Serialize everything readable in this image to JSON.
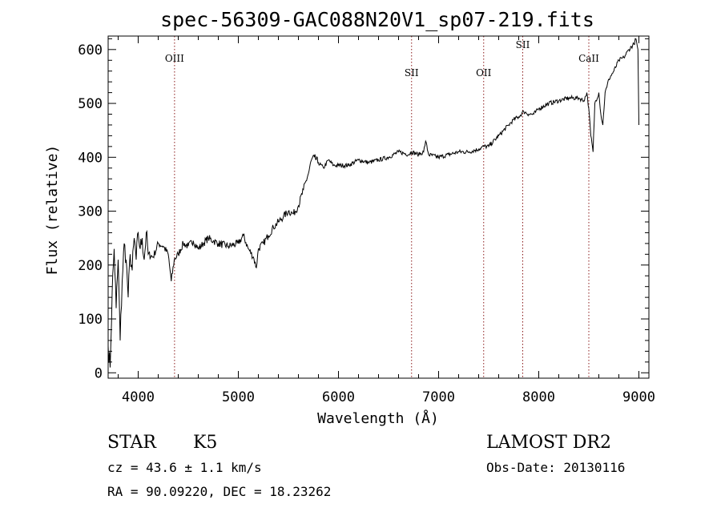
{
  "chart_data": {
    "type": "line",
    "title": "spec-56309-GAC088N20V1_sp07-219.fits",
    "xlabel": "Wavelength (Å)",
    "ylabel": "Flux (relative)",
    "xlim": [
      3700,
      9100
    ],
    "ylim": [
      -10,
      625
    ],
    "x_ticks": [
      4000,
      5000,
      6000,
      7000,
      8000,
      9000
    ],
    "y_ticks": [
      0,
      100,
      200,
      300,
      400,
      500,
      600
    ],
    "grid": false,
    "line_color": "#000000",
    "marker_color": "#8b1a1a",
    "lines": [
      {
        "name": "OIII",
        "x": 4363
      },
      {
        "name": "SII",
        "x": 6730
      },
      {
        "name": "OII",
        "x": 7450
      },
      {
        "name": "SII",
        "x": 7840
      },
      {
        "name": "CaII",
        "x": 8500
      }
    ],
    "series": [
      {
        "x": [
          3700,
          3720,
          3740,
          3760,
          3780,
          3800,
          3820,
          3840,
          3860,
          3880,
          3900,
          3920,
          3940,
          3960,
          3980,
          4000,
          4020,
          4040,
          4060,
          4080,
          4100,
          4150,
          4200,
          4250,
          4300,
          4330,
          4360,
          4400,
          4450,
          4500,
          4550,
          4600,
          4650,
          4700,
          4750,
          4800,
          4900,
          5000,
          5050,
          5100,
          5150,
          5180,
          5200,
          5250,
          5300,
          5350,
          5400,
          5450,
          5500,
          5550,
          5600,
          5650,
          5700,
          5730,
          5760,
          5800,
          5850,
          5900,
          5950,
          6000,
          6100,
          6200,
          6300,
          6400,
          6500,
          6600,
          6700,
          6730,
          6800,
          6850,
          6870,
          6900,
          7000,
          7100,
          7200,
          7300,
          7400,
          7450,
          7500,
          7600,
          7700,
          7750,
          7800,
          7850,
          7900,
          7950,
          8000,
          8100,
          8200,
          8300,
          8400,
          8450,
          8480,
          8500,
          8520,
          8542,
          8560,
          8600,
          8620,
          8640,
          8662,
          8680,
          8700,
          8750,
          8800,
          8850,
          8900,
          8950,
          8970,
          8990,
          9000
        ],
        "y": [
          50,
          10,
          150,
          230,
          120,
          210,
          60,
          170,
          240,
          210,
          140,
          220,
          190,
          250,
          210,
          260,
          230,
          250,
          210,
          260,
          220,
          215,
          240,
          235,
          220,
          170,
          210,
          220,
          240,
          235,
          245,
          230,
          240,
          250,
          245,
          240,
          235,
          240,
          255,
          230,
          215,
          195,
          230,
          240,
          255,
          270,
          280,
          290,
          300,
          295,
          310,
          340,
          370,
          395,
          400,
          390,
          380,
          395,
          385,
          385,
          385,
          395,
          390,
          395,
          400,
          410,
          405,
          410,
          405,
          410,
          430,
          405,
          400,
          405,
          410,
          410,
          415,
          420,
          420,
          440,
          460,
          470,
          475,
          485,
          480,
          480,
          490,
          500,
          505,
          510,
          510,
          505,
          520,
          490,
          440,
          410,
          500,
          520,
          480,
          460,
          520,
          530,
          545,
          560,
          580,
          585,
          600,
          610,
          620,
          600,
          460
        ]
      }
    ]
  },
  "info": {
    "object_class": "STAR",
    "subclass": "K5",
    "survey": "LAMOST DR2",
    "cz": "cz = 43.6 ± 1.1 km/s",
    "obs_date": "Obs-Date: 20130116",
    "coords": "RA =  90.09220, DEC =  18.23262"
  }
}
